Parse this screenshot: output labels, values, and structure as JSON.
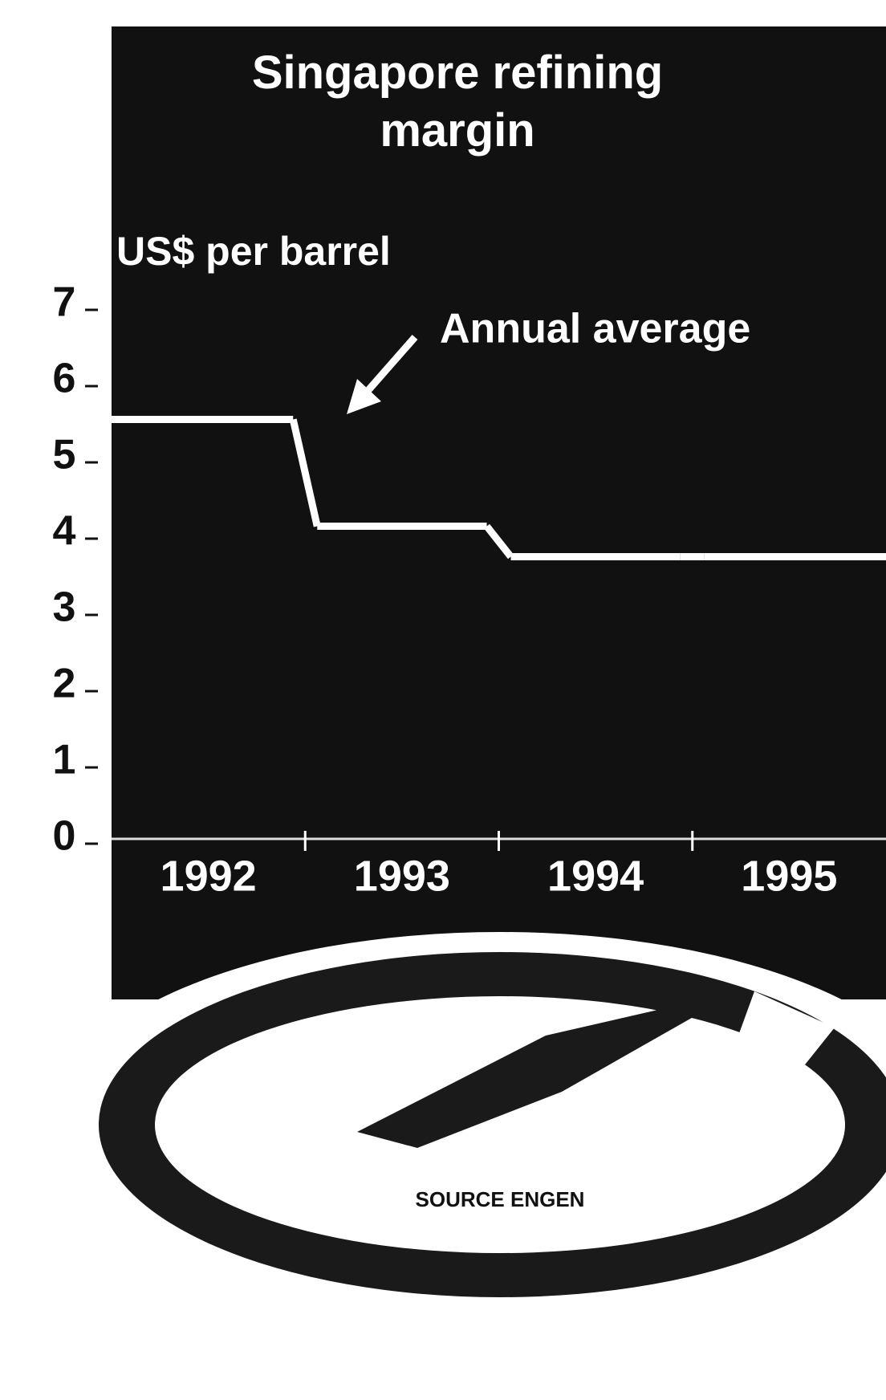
{
  "chart_data": {
    "type": "line",
    "title": "Singapore refining margin",
    "y_label": "US$ per barrel",
    "annotation": "Annual average",
    "source": "SOURCE ENGEN",
    "categories": [
      "1992",
      "1993",
      "1994",
      "1995"
    ],
    "series": [
      {
        "name": "Annual average",
        "color": "#ffffff",
        "values": [
          5.5,
          4.1,
          3.7,
          3.7
        ]
      }
    ],
    "ylim": [
      0,
      7
    ],
    "yticks": [
      0,
      1,
      2,
      3,
      4,
      5,
      6,
      7
    ]
  }
}
